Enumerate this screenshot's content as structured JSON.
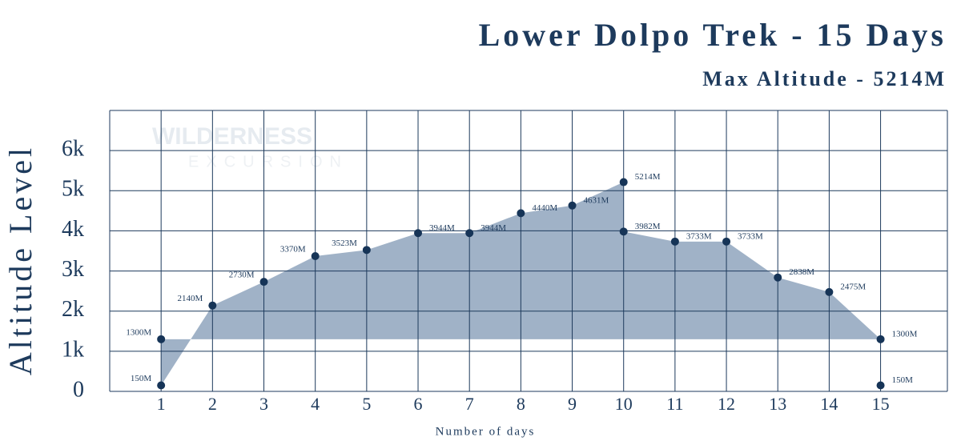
{
  "chart_data": {
    "type": "area",
    "title": "Lower Dolpo Trek - 15 Days",
    "subtitle": "Max Altitude - 5214M",
    "watermark": [
      "WILDERNESS",
      "EXCURSION"
    ],
    "xlabel": "Number of days",
    "ylabel": "Altitude Level",
    "x": [
      1,
      1,
      2,
      3,
      4,
      5,
      6,
      7,
      8,
      9,
      10,
      10,
      11,
      12,
      13,
      14,
      15,
      15
    ],
    "series": [
      {
        "color": "#8fa4bd",
        "values": [
          1300,
          150,
          2140,
          2730,
          3370,
          3523,
          3944,
          3944,
          4440,
          4631,
          5214,
          3982,
          3733,
          3733,
          2838,
          2475,
          1300,
          150
        ],
        "value_labels": [
          "1300M",
          "150M",
          "2140M",
          "2730M",
          "3370M",
          "3523M",
          "3944M",
          "3944M",
          "4440M",
          "4631M",
          "5214M",
          "3982M",
          "3733M",
          "3733M",
          "2838M",
          "2475M",
          "1300M",
          "150M"
        ]
      }
    ],
    "xlim": [
      0,
      16.3
    ],
    "xticks": [
      1,
      2,
      3,
      4,
      5,
      6,
      7,
      8,
      9,
      10,
      11,
      12,
      13,
      14,
      15
    ],
    "ylim": [
      0,
      7000
    ],
    "yticks": [
      0,
      {
        "value": 1000,
        "label": "1k"
      },
      {
        "value": 2000,
        "label": "2k"
      },
      {
        "value": 3000,
        "label": "3k"
      },
      {
        "value": 4000,
        "label": "4k"
      },
      {
        "value": 5000,
        "label": "5k"
      },
      {
        "value": 6000,
        "label": "6k"
      }
    ],
    "grid": true,
    "point_color": "#163457"
  }
}
